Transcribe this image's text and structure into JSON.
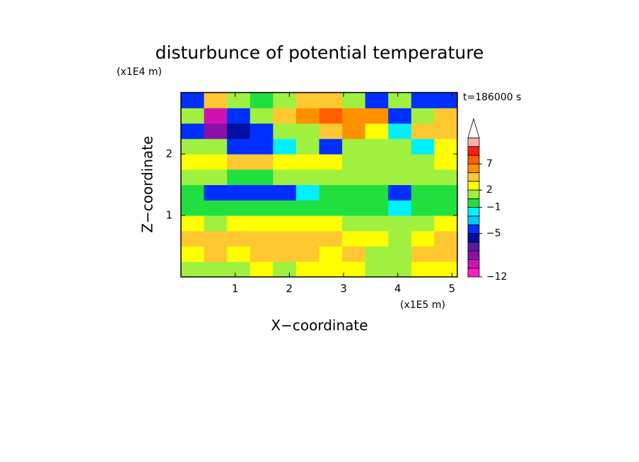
{
  "chart_data": {
    "type": "contourf",
    "title": "disturbunce of potential temperature",
    "x_label": "X−coordinate",
    "y_label": "Z−coordinate",
    "x_unit": "(x1E5 m)",
    "y_unit": "(x1E4 m)",
    "annotation": "t=186000 s",
    "xlim": [
      0,
      5.1
    ],
    "ylim": [
      0,
      3
    ],
    "xticks": [
      1,
      2,
      3,
      4,
      5
    ],
    "yticks": [
      1,
      2
    ],
    "z": [
      [
        1.5,
        0.5,
        0.5,
        2.5,
        0.5,
        2.5,
        2.5,
        2.5,
        0.5,
        0.5,
        2.5,
        2.5
      ],
      [
        2.5,
        4,
        2.5,
        4,
        4,
        4,
        2.5,
        4,
        0.5,
        0.5,
        4,
        4
      ],
      [
        4,
        4,
        4,
        4,
        4,
        4,
        4,
        2.5,
        2.5,
        0.5,
        2.5,
        4
      ],
      [
        2.5,
        1.5,
        2.5,
        2.5,
        2.5,
        2.5,
        2.5,
        1.5,
        0.5,
        0.5,
        1.5,
        2.5
      ],
      [
        -0.5,
        -0.5,
        -0.5,
        -0.5,
        -0.5,
        -0.5,
        -0.5,
        -0.5,
        -0.5,
        -1.5,
        -0.5,
        -0.5
      ],
      [
        -0.5,
        -4.5,
        -4.5,
        -4.5,
        -4.5,
        -1.5,
        -0.5,
        -0.5,
        -0.5,
        -4.5,
        -0.5,
        -0.5
      ],
      [
        0.5,
        0.5,
        -0.5,
        -0.5,
        0.5,
        0.5,
        0.5,
        0.5,
        0.5,
        0.5,
        0.5,
        1.5
      ],
      [
        2.5,
        2.5,
        4,
        4,
        2.5,
        2.5,
        2.5,
        1.5,
        0.5,
        0.5,
        1.5,
        2.5
      ],
      [
        1.5,
        0.5,
        -4.5,
        -4.5,
        -1.5,
        0.5,
        -4.5,
        0.5,
        0.5,
        0.5,
        -1.5,
        2.5
      ],
      [
        -4.5,
        -7.5,
        -5.5,
        -4.5,
        0.5,
        1.5,
        4,
        6,
        2.5,
        -1.5,
        4,
        4
      ],
      [
        0.5,
        -9,
        -4.5,
        0.5,
        4,
        6,
        8,
        6,
        6,
        -4.5,
        0.5,
        4
      ],
      [
        -4.5,
        4,
        0.5,
        -0.5,
        0.5,
        4,
        4,
        0.5,
        -4.5,
        0.5,
        -4.5,
        -4.5
      ]
    ],
    "levels": [
      -12,
      -10,
      -8,
      -7,
      -6,
      -5,
      -4,
      -2,
      -1,
      0,
      2,
      3,
      5,
      7,
      9,
      11,
      13
    ],
    "colors": [
      "#ff1cc8",
      "#d010b4",
      "#8a10a8",
      "#5a1aa0",
      "#0010a0",
      "#0030ff",
      "#00c8ff",
      "#00f0ff",
      "#20e040",
      "#a0f040",
      "#ffff00",
      "#ffc830",
      "#ff9000",
      "#ff6000",
      "#ff2010",
      "#ffb0b0"
    ],
    "colorbar_ticks": [
      {
        "value": -12,
        "label": "−12"
      },
      {
        "value": -5,
        "label": "−5"
      },
      {
        "value": -1,
        "label": "−1"
      },
      2,
      7
    ]
  }
}
